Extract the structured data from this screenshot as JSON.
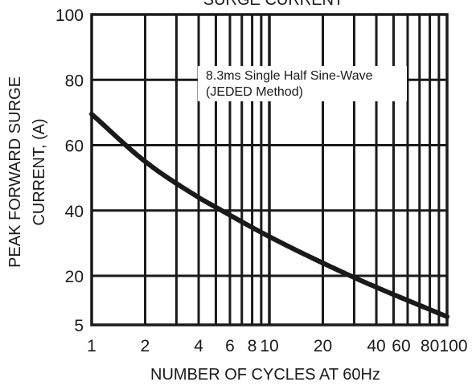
{
  "colors": {
    "ink": "#1a1a1a",
    "background": "#ffffff"
  },
  "chart_data": {
    "type": "line",
    "title": "SURGE CURRENT",
    "xlabel": "NUMBER OF CYCLES AT 60Hz",
    "ylabel": [
      "PEAK FORWARD SURGE",
      "CURRENT, (A)"
    ],
    "x_scale": "log",
    "y_scale": "linear",
    "xlim": [
      1,
      100
    ],
    "ylim": [
      5,
      100
    ],
    "x_ticks": [
      1,
      2,
      4,
      6,
      8,
      10,
      20,
      40,
      60,
      80,
      100
    ],
    "x_tick_labels": [
      "1",
      "2",
      "4",
      "6",
      "8",
      "10",
      "20",
      "40",
      "60",
      "80",
      "100"
    ],
    "y_ticks": [
      5,
      20,
      40,
      60,
      80,
      100
    ],
    "y_tick_labels": [
      "5",
      "20",
      "40",
      "60",
      "80",
      "100"
    ],
    "grid": true,
    "annotation": [
      "8.3ms Single Half Sine-Wave",
      "(JEDED Method)"
    ],
    "series": [
      {
        "x": [
          1,
          2,
          4,
          5,
          10,
          30,
          100
        ],
        "y": [
          69.5,
          55,
          44,
          41,
          32,
          19.5,
          7.5
        ]
      }
    ]
  }
}
